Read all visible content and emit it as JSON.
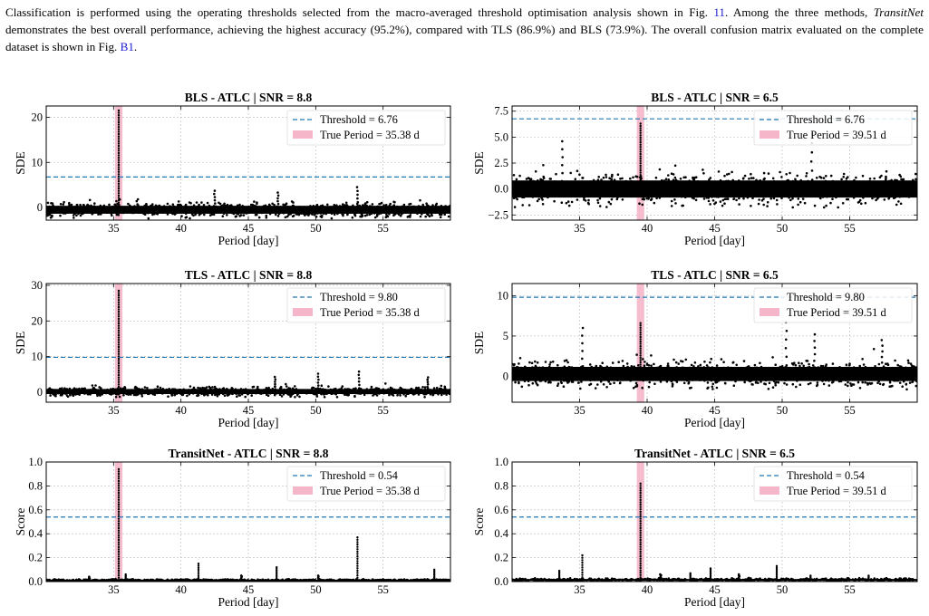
{
  "paragraph": {
    "s1": "Classification is performed using the operating thresholds selected from the macro-averaged threshold optimisation analysis shown in Fig.",
    "ref1": "11",
    "s2": ". Among the three methods,",
    "method": "TransitNet",
    "s3": "demonstrates the best overall performance, achieving the highest accuracy (95.2%), compared with TLS (86.9%) and BLS (73.9%). The overall confusion matrix evaluated on the complete dataset is shown in Fig.",
    "ref2": "B1",
    "s4": "."
  },
  "chart_data": [
    {
      "type": "scatter",
      "title": "BLS - ATLC | SNR = 8.8",
      "xlabel": "Period [day]",
      "ylabel": "SDE",
      "xlim": [
        30,
        60
      ],
      "ylim": [
        -2.8,
        22.5
      ],
      "xticks": [
        35,
        40,
        45,
        50,
        55
      ],
      "xtick_labels": [
        "35",
        "40",
        "45",
        "50",
        "55"
      ],
      "yticks": [
        0,
        10,
        20
      ],
      "ytick_labels": [
        "0",
        "10",
        "20"
      ],
      "threshold": 6.76,
      "threshold_label": "Threshold = 6.76",
      "true_period": 35.38,
      "true_period_label": "True Period = 35.38 d",
      "grid": true,
      "legend": "top-right",
      "noise": {
        "base": -0.5,
        "spread": 1.6,
        "max": 3.0
      },
      "peaks": [
        [
          35.38,
          21.5
        ]
      ],
      "spikes": [
        [
          53.1,
          4.5
        ],
        [
          42.5,
          3.7
        ],
        [
          47.2,
          3.3
        ]
      ]
    },
    {
      "type": "scatter",
      "title": "BLS - ATLC | SNR = 6.5",
      "xlabel": "Period [day]",
      "ylabel": "SDE",
      "xlim": [
        30,
        60
      ],
      "ylim": [
        -3.0,
        8.0
      ],
      "xticks": [
        35,
        40,
        45,
        50,
        55
      ],
      "xtick_labels": [
        "35",
        "40",
        "45",
        "50",
        "55"
      ],
      "yticks": [
        -2.5,
        0,
        2.5,
        5,
        7.5
      ],
      "ytick_labels": [
        "−2.5",
        "0.0",
        "2.5",
        "5.0",
        "7.5"
      ],
      "threshold": 6.76,
      "threshold_label": "Threshold = 6.76",
      "true_period": 39.51,
      "true_period_label": "True Period = 39.51 d",
      "grid": true,
      "legend": "top-right",
      "noise": {
        "base": 0.0,
        "spread": 1.5,
        "max": 3.4
      },
      "peaks": [
        [
          39.51,
          6.3
        ]
      ],
      "spikes": [
        [
          52.2,
          5.3
        ],
        [
          33.7,
          4.6
        ]
      ]
    },
    {
      "type": "scatter",
      "title": "TLS - ATLC | SNR = 8.8",
      "xlabel": "Period [day]",
      "ylabel": "SDE",
      "xlim": [
        30,
        60
      ],
      "ylim": [
        -2.8,
        30.5
      ],
      "xticks": [
        35,
        40,
        45,
        50,
        55
      ],
      "xtick_labels": [
        "35",
        "40",
        "45",
        "50",
        "55"
      ],
      "yticks": [
        0,
        10,
        20,
        30
      ],
      "ytick_labels": [
        "0",
        "10",
        "20",
        "30"
      ],
      "threshold": 9.8,
      "threshold_label": "Threshold = 9.80",
      "true_period": 35.38,
      "true_period_label": "True Period = 35.38 d",
      "grid": true,
      "legend": "top-right",
      "noise": {
        "base": 0.2,
        "spread": 1.3,
        "max": 3.0
      },
      "peaks": [
        [
          35.38,
          28.5
        ]
      ],
      "spikes": [
        [
          53.2,
          5.8
        ],
        [
          50.2,
          5.2
        ],
        [
          47.0,
          4.3
        ],
        [
          58.3,
          4.2
        ]
      ]
    },
    {
      "type": "scatter",
      "title": "TLS - ATLC | SNR = 6.5",
      "xlabel": "Period [day]",
      "ylabel": "SDE",
      "xlim": [
        30,
        60
      ],
      "ylim": [
        -3.2,
        11.5
      ],
      "xticks": [
        35,
        40,
        45,
        50,
        55
      ],
      "xtick_labels": [
        "35",
        "40",
        "45",
        "50",
        "55"
      ],
      "yticks": [
        0,
        5,
        10
      ],
      "ytick_labels": [
        "0",
        "5",
        "10"
      ],
      "threshold": 9.8,
      "threshold_label": "Threshold = 9.80",
      "true_period": 39.51,
      "true_period_label": "True Period = 39.51 d",
      "grid": true,
      "legend": "top-right",
      "noise": {
        "base": 0.3,
        "spread": 1.6,
        "max": 3.6
      },
      "peaks": [
        [
          39.51,
          6.6
        ]
      ],
      "spikes": [
        [
          50.3,
          6.7
        ],
        [
          35.2,
          6.0
        ],
        [
          52.4,
          5.2
        ],
        [
          57.4,
          4.5
        ]
      ]
    },
    {
      "type": "scatter",
      "title": "TransitNet - ATLC | SNR = 8.8",
      "xlabel": "Period [day]",
      "ylabel": "Score",
      "xlim": [
        30,
        60
      ],
      "ylim": [
        0,
        1
      ],
      "xticks": [
        35,
        40,
        45,
        50,
        55
      ],
      "xtick_labels": [
        "35",
        "40",
        "45",
        "50",
        "55"
      ],
      "yticks": [
        0,
        0.2,
        0.4,
        0.6,
        0.8,
        1.0
      ],
      "ytick_labels": [
        "0.0",
        "0.2",
        "0.4",
        "0.6",
        "0.8",
        "1.0"
      ],
      "threshold": 0.54,
      "threshold_label": "Threshold = 0.54",
      "true_period": 35.38,
      "true_period_label": "True Period = 35.38 d",
      "grid": true,
      "legend": "top-right",
      "noise": {
        "base": 0.012,
        "spread": 0.008,
        "max": 0.03
      },
      "peaks": [
        [
          35.38,
          0.94
        ],
        [
          53.1,
          0.37
        ],
        [
          41.3,
          0.15
        ],
        [
          47.1,
          0.12
        ],
        [
          58.8,
          0.1
        ],
        [
          35.9,
          0.06
        ]
      ],
      "spikes": [
        [
          33.2,
          0.04
        ],
        [
          44.5,
          0.05
        ],
        [
          50.2,
          0.05
        ]
      ]
    },
    {
      "type": "scatter",
      "title": "TransitNet - ATLC | SNR = 6.5",
      "xlabel": "Period [day]",
      "ylabel": "Score",
      "xlim": [
        30,
        60
      ],
      "ylim": [
        0,
        1
      ],
      "xticks": [
        35,
        40,
        45,
        50,
        55
      ],
      "xtick_labels": [
        "35",
        "40",
        "45",
        "50",
        "55"
      ],
      "yticks": [
        0,
        0.2,
        0.4,
        0.6,
        0.8,
        1.0
      ],
      "ytick_labels": [
        "0.0",
        "0.2",
        "0.4",
        "0.6",
        "0.8",
        "1.0"
      ],
      "threshold": 0.54,
      "threshold_label": "Threshold = 0.54",
      "true_period": 39.51,
      "true_period_label": "True Period = 39.51 d",
      "grid": true,
      "legend": "top-right",
      "noise": {
        "base": 0.015,
        "spread": 0.012,
        "max": 0.04
      },
      "peaks": [
        [
          39.51,
          0.82
        ],
        [
          35.2,
          0.22
        ],
        [
          49.6,
          0.13
        ],
        [
          44.7,
          0.11
        ],
        [
          33.5,
          0.09
        ],
        [
          43.2,
          0.07
        ],
        [
          52.1,
          0.05
        ],
        [
          56.4,
          0.05
        ]
      ],
      "spikes": [
        [
          46.8,
          0.06
        ],
        [
          41.0,
          0.06
        ]
      ]
    }
  ],
  "colors": {
    "threshold": "#1f77b4",
    "true_period_band": "#f4b6c8",
    "points": "#000000",
    "grid": "#bbbbbb",
    "citation": "#1a1ad2"
  }
}
